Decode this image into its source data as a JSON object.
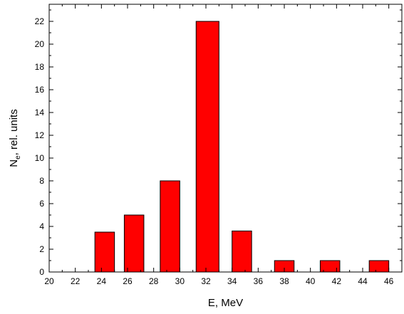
{
  "chart_data": {
    "type": "bar",
    "title": "",
    "xlabel": "E, MeV",
    "ylabel_main": "N",
    "ylabel_sub": "e",
    "ylabel_rest": ", rel. units",
    "xlim": [
      20,
      47
    ],
    "ylim": [
      0,
      23.5
    ],
    "x_ticks": [
      20,
      22,
      24,
      26,
      28,
      30,
      32,
      34,
      36,
      38,
      40,
      42,
      44,
      46
    ],
    "y_ticks": [
      0,
      2,
      4,
      6,
      8,
      10,
      12,
      14,
      16,
      18,
      20,
      22
    ],
    "bars": [
      {
        "x_start": 23.5,
        "x_end": 25,
        "value": 3.5
      },
      {
        "x_start": 25.75,
        "x_end": 27.25,
        "value": 5
      },
      {
        "x_start": 28.5,
        "x_end": 30,
        "value": 8
      },
      {
        "x_start": 31.25,
        "x_end": 33,
        "value": 22
      },
      {
        "x_start": 34,
        "x_end": 35.5,
        "value": 3.6
      },
      {
        "x_start": 37.25,
        "x_end": 38.75,
        "value": 1
      },
      {
        "x_start": 40.75,
        "x_end": 42.25,
        "value": 1
      },
      {
        "x_start": 44.5,
        "x_end": 46,
        "value": 1
      }
    ],
    "bar_color": "#ff0000",
    "grid": false,
    "legend": "none"
  }
}
